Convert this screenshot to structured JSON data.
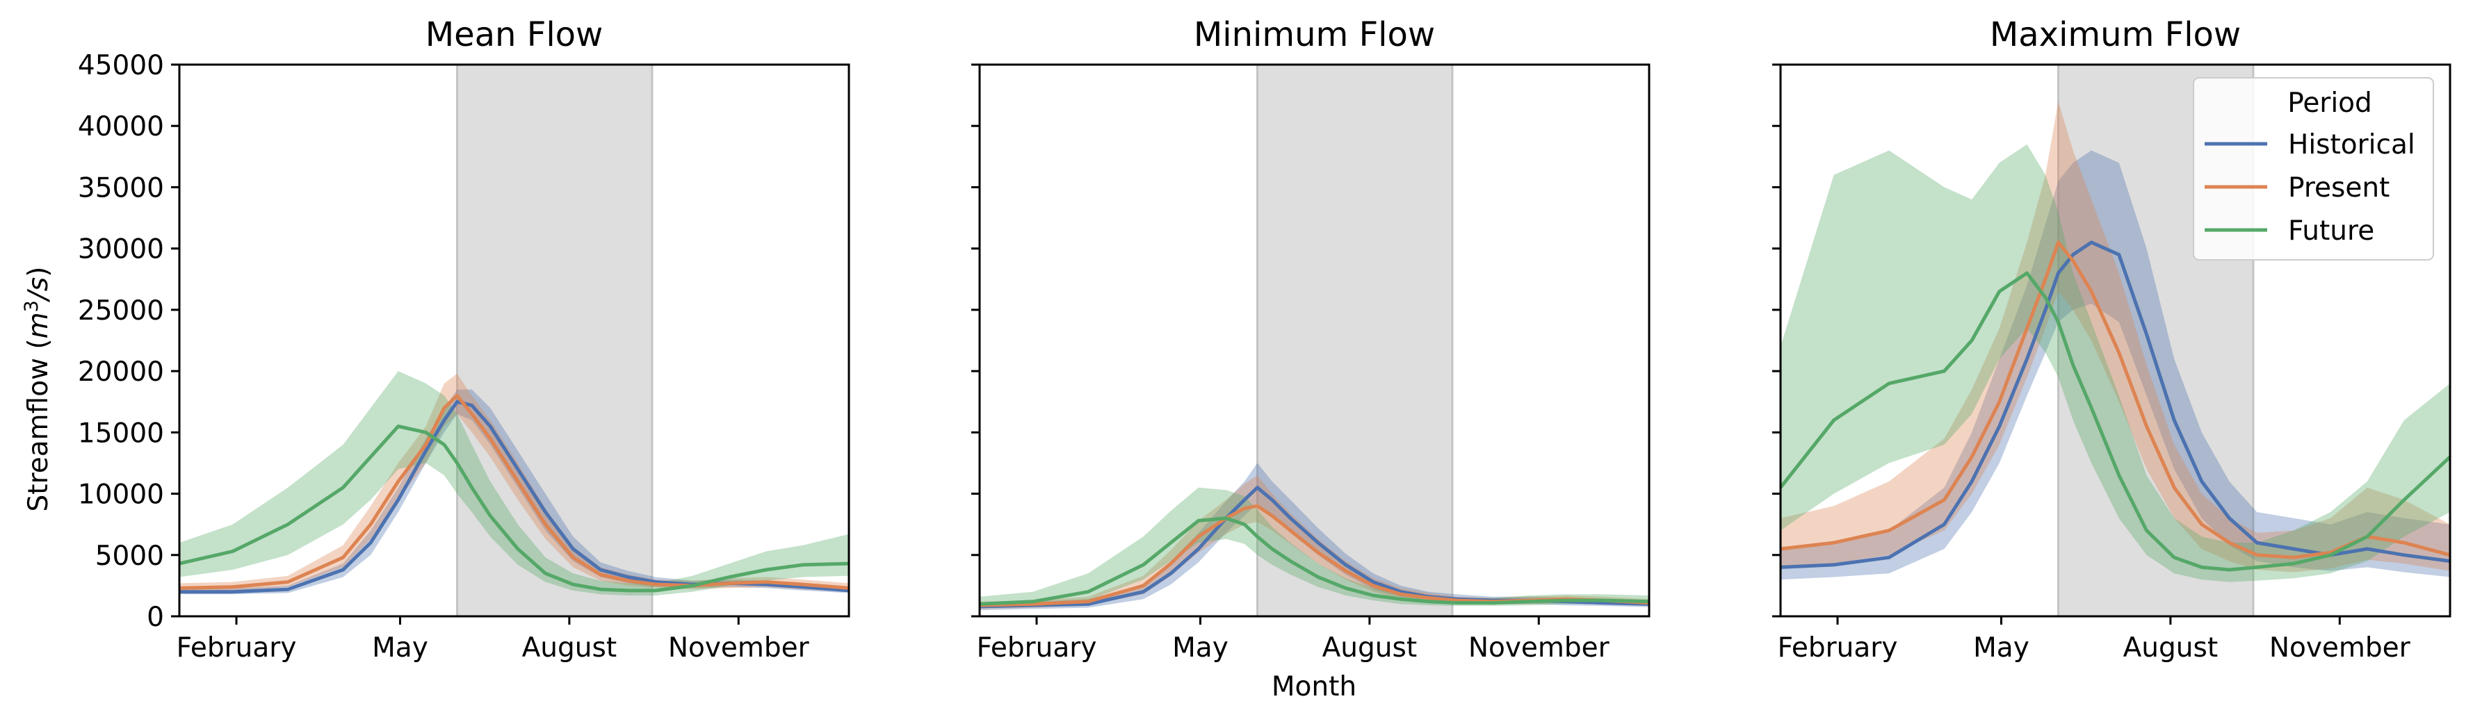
{
  "figure": {
    "xlabel": "Month",
    "ylabel_prefix": "Streamflow (",
    "ylabel_unit_base": "m",
    "ylabel_unit_exp": "3",
    "ylabel_unit_tail": "/s)",
    "shaded_region": {
      "start_day": 152,
      "end_day": 258,
      "color": "#dedede"
    }
  },
  "legend": {
    "title": "Period",
    "location": "upper right of Maximum Flow panel",
    "entries": [
      {
        "label": "Historical",
        "color": "#4c72b0"
      },
      {
        "label": "Present",
        "color": "#dd8452"
      },
      {
        "label": "Future",
        "color": "#55a868"
      }
    ]
  },
  "chart_data": [
    {
      "type": "line",
      "title": "Mean Flow",
      "x_unit": "day of year",
      "xlim": [
        1,
        365
      ],
      "ylim": [
        0,
        45000
      ],
      "x_ticks": [
        {
          "day": 32,
          "label": "February"
        },
        {
          "day": 121,
          "label": "May"
        },
        {
          "day": 213,
          "label": "August"
        },
        {
          "day": 305,
          "label": "November"
        }
      ],
      "y_ticks": [
        0,
        5000,
        10000,
        15000,
        20000,
        25000,
        30000,
        35000,
        40000,
        45000
      ],
      "y_tick_labels": [
        "0",
        "5000",
        "10000",
        "15000",
        "20000",
        "25000",
        "30000",
        "35000",
        "40000",
        "45000"
      ],
      "series": [
        {
          "name": "Historical",
          "color": "#4c72b0",
          "x": [
            1,
            30,
            60,
            90,
            105,
            120,
            135,
            145,
            152,
            160,
            170,
            185,
            200,
            215,
            230,
            245,
            260,
            280,
            300,
            320,
            340,
            365
          ],
          "y": [
            2000,
            2000,
            2200,
            3800,
            6000,
            9500,
            13500,
            16000,
            17500,
            17200,
            15500,
            12000,
            8500,
            5500,
            3800,
            3200,
            2800,
            2600,
            2700,
            2600,
            2400,
            2100
          ],
          "low": [
            1800,
            1800,
            1900,
            3200,
            5000,
            8500,
            12500,
            15000,
            16500,
            16000,
            14000,
            10500,
            7000,
            4500,
            3200,
            2700,
            2400,
            2300,
            2400,
            2300,
            2100,
            1900
          ],
          "high": [
            2300,
            2300,
            2500,
            4300,
            7000,
            10500,
            14500,
            17000,
            18500,
            18500,
            17000,
            13500,
            10000,
            6500,
            4400,
            3700,
            3200,
            2900,
            3000,
            2900,
            2700,
            2400
          ]
        },
        {
          "name": "Present",
          "color": "#dd8452",
          "x": [
            1,
            30,
            60,
            90,
            105,
            120,
            135,
            145,
            152,
            160,
            170,
            185,
            200,
            215,
            230,
            245,
            260,
            280,
            300,
            320,
            340,
            365
          ],
          "y": [
            2300,
            2400,
            2800,
            4800,
            7500,
            11000,
            14000,
            17000,
            18000,
            16500,
            14500,
            11000,
            7500,
            4800,
            3400,
            2900,
            2600,
            2500,
            2700,
            2800,
            2600,
            2300
          ],
          "low": [
            2000,
            2100,
            2400,
            4000,
            6300,
            9500,
            12500,
            15500,
            16500,
            15000,
            13000,
            9500,
            6300,
            4000,
            2900,
            2500,
            2300,
            2200,
            2300,
            2400,
            2200,
            2000
          ],
          "high": [
            2700,
            2800,
            3300,
            5800,
            9000,
            12500,
            15500,
            19000,
            19800,
            18000,
            16000,
            12500,
            8800,
            5700,
            4000,
            3400,
            3000,
            2900,
            3100,
            3200,
            3000,
            2700
          ]
        },
        {
          "name": "Future",
          "color": "#55a868",
          "x": [
            1,
            30,
            60,
            90,
            105,
            120,
            135,
            145,
            152,
            160,
            170,
            185,
            200,
            215,
            230,
            245,
            260,
            280,
            300,
            320,
            340,
            365
          ],
          "y": [
            4300,
            5300,
            7500,
            10500,
            13000,
            15500,
            15000,
            14000,
            12500,
            10500,
            8200,
            5500,
            3500,
            2600,
            2200,
            2100,
            2100,
            2500,
            3200,
            3800,
            4200,
            4300
          ],
          "low": [
            3200,
            3800,
            5000,
            7500,
            9500,
            12000,
            12500,
            11500,
            10000,
            8500,
            6500,
            4200,
            2800,
            2100,
            1800,
            1700,
            1700,
            2000,
            2500,
            2900,
            3200,
            3300
          ],
          "high": [
            6000,
            7500,
            10500,
            14000,
            17000,
            20000,
            19000,
            18000,
            16500,
            14000,
            11000,
            7500,
            4800,
            3500,
            2900,
            2700,
            2700,
            3300,
            4300,
            5300,
            5800,
            6700
          ]
        }
      ]
    },
    {
      "type": "line",
      "title": "Minimum Flow",
      "x_unit": "day of year",
      "xlim": [
        1,
        365
      ],
      "ylim": [
        0,
        45000
      ],
      "x_ticks": [
        {
          "day": 32,
          "label": "February"
        },
        {
          "day": 121,
          "label": "May"
        },
        {
          "day": 213,
          "label": "August"
        },
        {
          "day": 305,
          "label": "November"
        }
      ],
      "y_ticks": [
        0,
        5000,
        10000,
        15000,
        20000,
        25000,
        30000,
        35000,
        40000,
        45000
      ],
      "series": [
        {
          "name": "Historical",
          "color": "#4c72b0",
          "x": [
            1,
            30,
            60,
            90,
            105,
            120,
            135,
            145,
            152,
            160,
            170,
            185,
            200,
            215,
            230,
            245,
            260,
            280,
            300,
            320,
            340,
            365
          ],
          "y": [
            800,
            900,
            1000,
            2000,
            3500,
            5500,
            8000,
            9500,
            10500,
            9500,
            8000,
            6000,
            4200,
            2800,
            2000,
            1600,
            1400,
            1300,
            1300,
            1200,
            1100,
            1000
          ],
          "low": [
            500,
            600,
            700,
            1400,
            2600,
            4400,
            6800,
            8200,
            9200,
            8200,
            6800,
            5000,
            3400,
            2200,
            1600,
            1300,
            1100,
            1000,
            1000,
            900,
            850,
            750
          ],
          "high": [
            1100,
            1200,
            1400,
            2600,
            4500,
            6800,
            9400,
            11000,
            12500,
            11000,
            9500,
            7200,
            5100,
            3500,
            2500,
            2000,
            1800,
            1600,
            1600,
            1500,
            1400,
            1300
          ]
        },
        {
          "name": "Present",
          "color": "#dd8452",
          "x": [
            1,
            30,
            60,
            90,
            105,
            120,
            135,
            145,
            152,
            160,
            170,
            185,
            200,
            215,
            230,
            245,
            260,
            280,
            300,
            320,
            340,
            365
          ],
          "y": [
            900,
            1000,
            1200,
            2500,
            4300,
            6500,
            8000,
            8800,
            9000,
            8200,
            7000,
            5200,
            3700,
            2500,
            1800,
            1500,
            1300,
            1200,
            1300,
            1400,
            1300,
            1100
          ],
          "low": [
            600,
            700,
            900,
            1800,
            3300,
            5200,
            6700,
            7500,
            7700,
            7000,
            5900,
            4300,
            3000,
            2000,
            1400,
            1200,
            1000,
            950,
            1000,
            1100,
            1000,
            850
          ],
          "high": [
            1200,
            1300,
            1600,
            3300,
            5400,
            7800,
            9500,
            10800,
            11500,
            10000,
            8400,
            6300,
            4500,
            3100,
            2300,
            1900,
            1600,
            1500,
            1600,
            1700,
            1600,
            1400
          ]
        },
        {
          "name": "Future",
          "color": "#55a868",
          "x": [
            1,
            30,
            60,
            90,
            105,
            120,
            135,
            145,
            152,
            160,
            170,
            185,
            200,
            215,
            230,
            245,
            260,
            280,
            300,
            320,
            340,
            365
          ],
          "y": [
            1000,
            1200,
            2000,
            4200,
            6000,
            7800,
            8000,
            7500,
            6500,
            5500,
            4500,
            3200,
            2300,
            1700,
            1400,
            1200,
            1100,
            1100,
            1200,
            1300,
            1300,
            1200
          ],
          "low": [
            700,
            800,
            1300,
            3000,
            4500,
            6000,
            6300,
            5900,
            5000,
            4200,
            3400,
            2400,
            1700,
            1300,
            1000,
            900,
            850,
            850,
            900,
            1000,
            1000,
            900
          ],
          "high": [
            1600,
            2000,
            3500,
            6500,
            8600,
            10500,
            10300,
            9800,
            8700,
            7300,
            6000,
            4300,
            3100,
            2300,
            1900,
            1700,
            1500,
            1500,
            1700,
            1800,
            1800,
            1700
          ]
        }
      ]
    },
    {
      "type": "line",
      "title": "Maximum Flow",
      "x_unit": "day of year",
      "xlim": [
        1,
        365
      ],
      "ylim": [
        0,
        45000
      ],
      "x_ticks": [
        {
          "day": 32,
          "label": "February"
        },
        {
          "day": 121,
          "label": "May"
        },
        {
          "day": 213,
          "label": "August"
        },
        {
          "day": 305,
          "label": "November"
        }
      ],
      "y_ticks": [
        0,
        5000,
        10000,
        15000,
        20000,
        25000,
        30000,
        35000,
        40000,
        45000
      ],
      "series": [
        {
          "name": "Historical",
          "color": "#4c72b0",
          "x": [
            1,
            30,
            60,
            90,
            105,
            120,
            135,
            145,
            152,
            160,
            170,
            185,
            200,
            215,
            230,
            245,
            260,
            280,
            300,
            320,
            340,
            365
          ],
          "y": [
            4000,
            4200,
            4800,
            7500,
            11000,
            15500,
            21000,
            25000,
            28000,
            29500,
            30500,
            29500,
            23000,
            16000,
            11000,
            8000,
            6000,
            5500,
            5000,
            5500,
            5000,
            4500
          ],
          "low": [
            3000,
            3200,
            3500,
            5500,
            8500,
            12500,
            18000,
            21500,
            24000,
            25000,
            25500,
            24000,
            18000,
            12000,
            8000,
            5800,
            4500,
            4000,
            3700,
            4000,
            3600,
            3200
          ],
          "high": [
            5500,
            6000,
            7000,
            10500,
            15000,
            21000,
            27000,
            32000,
            35500,
            37000,
            38000,
            37000,
            30000,
            21000,
            15000,
            11000,
            8500,
            8000,
            7500,
            8500,
            8000,
            7500
          ]
        },
        {
          "name": "Present",
          "color": "#dd8452",
          "x": [
            1,
            30,
            60,
            90,
            105,
            120,
            135,
            145,
            152,
            160,
            170,
            185,
            200,
            215,
            230,
            245,
            260,
            280,
            300,
            320,
            340,
            365
          ],
          "y": [
            5500,
            6000,
            7000,
            9500,
            13000,
            17500,
            23500,
            27500,
            30500,
            29000,
            26500,
            21500,
            15500,
            10500,
            7500,
            6000,
            5000,
            4800,
            5200,
            6500,
            6000,
            5000
          ],
          "low": [
            4000,
            4300,
            5000,
            7000,
            10000,
            14000,
            19500,
            23500,
            26500,
            25000,
            22500,
            17500,
            12000,
            8000,
            5500,
            4500,
            3800,
            3600,
            3900,
            4600,
            4300,
            3700
          ],
          "high": [
            8000,
            9000,
            11000,
            14500,
            18500,
            23500,
            30500,
            36000,
            42000,
            38000,
            34000,
            28000,
            20500,
            14000,
            10000,
            8000,
            6800,
            7000,
            8000,
            10500,
            9500,
            7500
          ]
        },
        {
          "name": "Future",
          "color": "#55a868",
          "x": [
            1,
            30,
            60,
            90,
            105,
            120,
            135,
            145,
            152,
            160,
            170,
            185,
            200,
            215,
            230,
            245,
            260,
            280,
            300,
            320,
            340,
            365
          ],
          "y": [
            10500,
            16000,
            19000,
            20000,
            22500,
            26500,
            28000,
            26000,
            24000,
            20500,
            17000,
            11500,
            7000,
            4800,
            4000,
            3800,
            4000,
            4300,
            5000,
            6500,
            9500,
            13000
          ],
          "low": [
            7000,
            10000,
            12500,
            14000,
            16500,
            21000,
            23500,
            21500,
            19500,
            16000,
            12500,
            8000,
            5000,
            3500,
            3000,
            2800,
            2900,
            3100,
            3500,
            4500,
            6500,
            8500
          ],
          "high": [
            22000,
            36000,
            38000,
            35000,
            34000,
            37000,
            38500,
            36000,
            33000,
            28000,
            24000,
            18000,
            11500,
            8000,
            6500,
            6000,
            6000,
            7000,
            8500,
            11000,
            16000,
            19000
          ]
        }
      ]
    }
  ]
}
